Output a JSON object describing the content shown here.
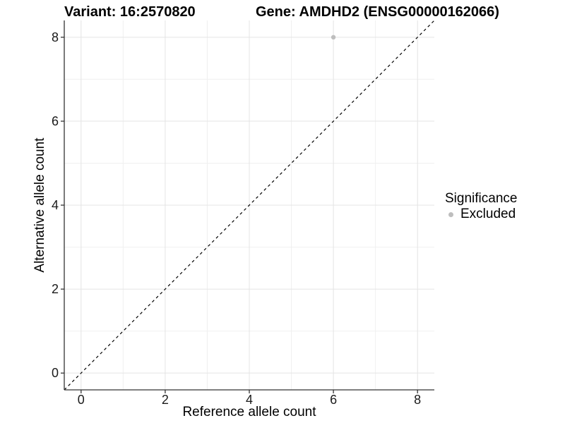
{
  "legend": {
    "title": "Significance",
    "items": [
      {
        "label": "Excluded",
        "color": "#BEBEBE"
      }
    ]
  },
  "colors": {
    "background": "#FFFFFF",
    "grid_major": "#E4E4E4",
    "grid_minor": "#F0F0F0",
    "axis_line": "#333333",
    "tick_text": "#1A1A1A",
    "title_text": "#000000",
    "identity_line": "#000000",
    "point": "#BEBEBE"
  },
  "chart_data": {
    "type": "scatter",
    "title_left": "Variant: 16:2570820",
    "title_right": "Gene: AMDHD2 (ENSG00000162066)",
    "xlabel": "Reference allele count",
    "ylabel": "Alternative allele count",
    "xlim": [
      -0.4,
      8.4
    ],
    "ylim": [
      -0.4,
      8.4
    ],
    "x_ticks": [
      0,
      2,
      4,
      6,
      8
    ],
    "y_ticks": [
      0,
      2,
      4,
      6,
      8
    ],
    "x_minor": [
      1,
      3,
      5,
      7
    ],
    "y_minor": [
      1,
      3,
      5,
      7
    ],
    "grid": "on",
    "legend_position": "right",
    "series": [
      {
        "name": "Excluded",
        "color": "#BEBEBE",
        "points": [
          {
            "x": 6,
            "y": 8
          }
        ]
      }
    ],
    "reference_line": {
      "type": "identity y=x",
      "style": "dashed",
      "color": "#000000"
    }
  }
}
